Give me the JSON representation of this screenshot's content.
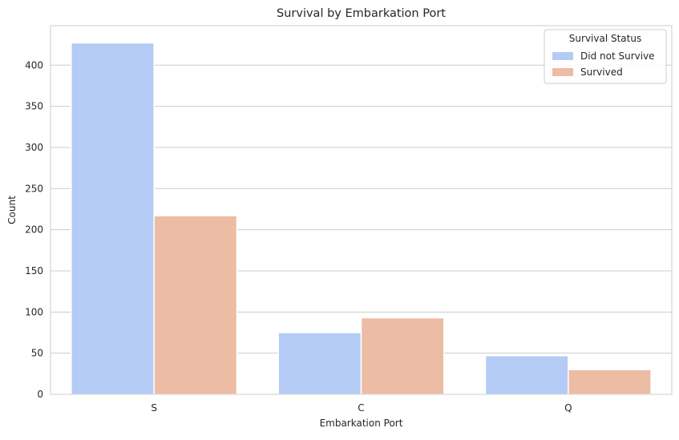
{
  "colors": {
    "did_not_survive": "#b4cbf6",
    "survived": "#edbca4",
    "grid": "#cccccc",
    "text": "#262626",
    "legend_border": "#cccccc"
  },
  "chart_data": {
    "type": "bar",
    "title": "Survival by Embarkation Port",
    "xlabel": "Embarkation Port",
    "ylabel": "Count",
    "categories": [
      "S",
      "C",
      "Q"
    ],
    "series": [
      {
        "name": "Did not Survive",
        "values": [
          427,
          75,
          47
        ]
      },
      {
        "name": "Survived",
        "values": [
          217,
          93,
          30
        ]
      }
    ],
    "yticks": [
      0,
      50,
      100,
      150,
      200,
      250,
      300,
      350,
      400
    ],
    "ylim": [
      0,
      448
    ],
    "grid": "horizontal",
    "legend": {
      "title": "Survival Status",
      "placement": "top-right"
    }
  }
}
